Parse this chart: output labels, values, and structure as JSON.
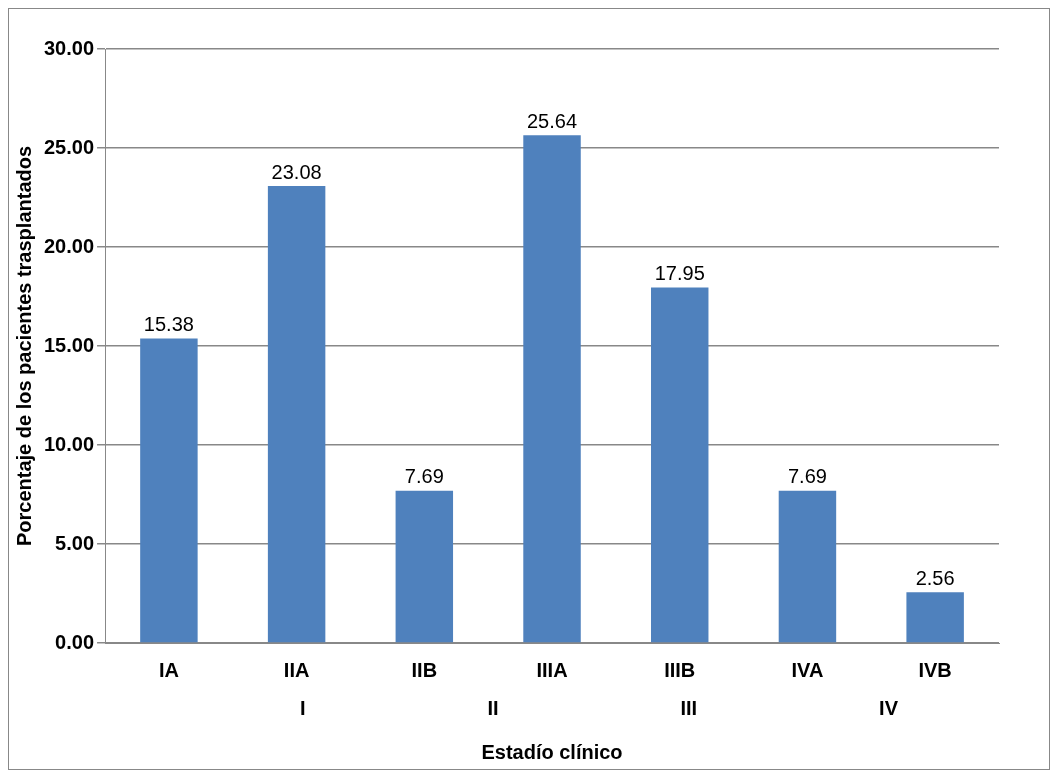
{
  "chart_data": {
    "type": "bar",
    "xlabel": "Estadío clínico",
    "ylabel": "Porcentaje de los pacientes trasplantados",
    "categories": [
      "IA",
      "IIA",
      "IIB",
      "IIIA",
      "IIIB",
      "IVA",
      "IVB"
    ],
    "values": [
      15.38,
      23.08,
      7.69,
      25.64,
      17.95,
      7.69,
      2.56
    ],
    "color": "#4f81bd",
    "ylim": [
      0,
      30
    ],
    "yticks": [
      {
        "value": 0,
        "label": "0.00"
      },
      {
        "value": 5,
        "label": "5.00"
      },
      {
        "value": 10,
        "label": "10.00"
      },
      {
        "value": 15,
        "label": "15.00"
      },
      {
        "value": 20,
        "label": "20.00"
      },
      {
        "value": 25,
        "label": "25.00"
      },
      {
        "value": 30,
        "label": "30.00"
      }
    ],
    "grid": "y",
    "data_labels": true,
    "annotations": [
      "I",
      "II",
      "III",
      "IV"
    ]
  }
}
